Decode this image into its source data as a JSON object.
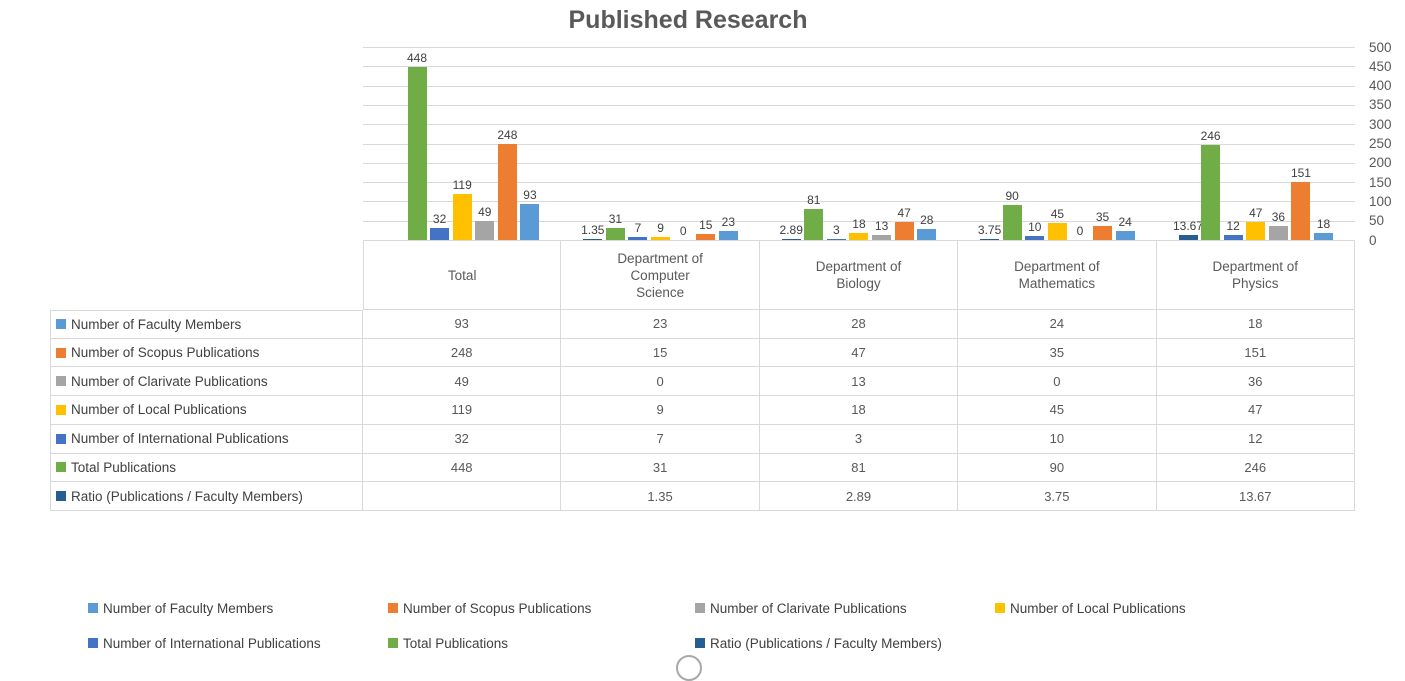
{
  "chart_data": {
    "type": "bar",
    "title": "Published Research",
    "xlabel": "",
    "ylabel": "",
    "ylim": [
      0,
      500
    ],
    "y_tick_step": 50,
    "y_tick_labels": [
      "500",
      "450",
      "400",
      "350",
      "300",
      "250",
      "200",
      "150",
      "100",
      "50",
      "0"
    ],
    "grid": true,
    "data_labels": true,
    "legend_position": "bottom",
    "y_axis_side": "right",
    "plot_order_note": "bars drawn in reverse series order (Ratio leftmost, Faculty rightmost)",
    "categories": [
      "Total",
      "Department of Computer Science",
      "Department of Biology",
      "Department of Mathematics",
      "Department of Physics"
    ],
    "series": [
      {
        "name": "Number of Faculty Members",
        "color": "#5B9BD5",
        "values": [
          93,
          23,
          28,
          24,
          18
        ]
      },
      {
        "name": "Number of Scopus Publications",
        "color": "#ED7D31",
        "values": [
          248,
          15,
          47,
          35,
          151
        ]
      },
      {
        "name": "Number of Clarivate Publications",
        "color": "#A5A5A5",
        "values": [
          49,
          0,
          13,
          0,
          36
        ]
      },
      {
        "name": "Number of Local Publications",
        "color": "#FFC000",
        "values": [
          119,
          9,
          18,
          45,
          47
        ]
      },
      {
        "name": "Number of International Publications",
        "color": "#4472C4",
        "values": [
          32,
          7,
          3,
          10,
          12
        ]
      },
      {
        "name": "Total Publications",
        "color": "#70AD47",
        "values": [
          448,
          31,
          81,
          90,
          246
        ]
      },
      {
        "name": "Ratio (Publications / Faculty Members)",
        "color": "#255E91",
        "values": [
          null,
          1.35,
          2.89,
          3.75,
          13.67
        ]
      }
    ],
    "legend_rows": [
      [
        0,
        1,
        2,
        3
      ],
      [
        4,
        5,
        6
      ]
    ]
  },
  "table": {
    "corner_label": "",
    "column_header_lines": [
      [
        "Total"
      ],
      [
        "Department of",
        "Computer",
        "Science"
      ],
      [
        "Department of",
        "Biology"
      ],
      [
        "Department of",
        "Mathematics"
      ],
      [
        "Department of",
        "Physics"
      ]
    ]
  },
  "colors": {
    "gridline": "#D9D9D9",
    "table_border": "#D9D9D9",
    "title_text": "#595959",
    "axis_text": "#595959",
    "bar_label_text": "#404040"
  }
}
